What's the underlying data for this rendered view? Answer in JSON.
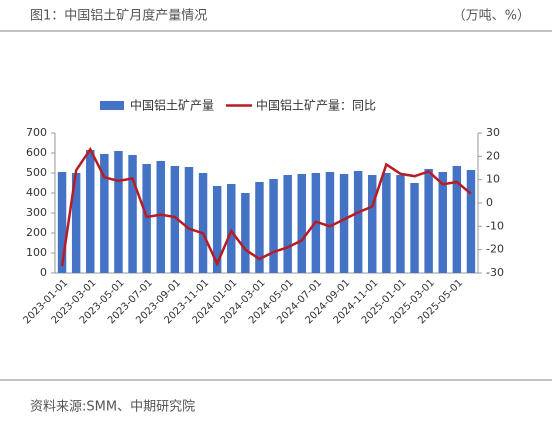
{
  "header": {
    "title": "图1：中国铝土矿月度产量情况",
    "unit": "（万吨、%）"
  },
  "source": "资料来源:SMM、中期研究院",
  "chart_data": {
    "type": "bar-line",
    "categories": [
      "2023-01-01",
      null,
      "2023-03-01",
      null,
      "2023-05-01",
      null,
      "2023-07-01",
      null,
      "2023-09-01",
      null,
      "2023-11-01",
      null,
      "2024-01-01",
      null,
      "2024-03-01",
      null,
      "2024-05-01",
      null,
      "2024-07-01",
      null,
      "2024-09-01",
      null,
      "2024-11-01",
      null,
      "2025-01-01",
      null,
      "2025-03-01",
      null,
      "2025-05-01",
      null
    ],
    "series": [
      {
        "name": "中国铝土矿产量",
        "color": "#4472c4",
        "type": "bar",
        "values": [
          505,
          500,
          615,
          595,
          610,
          590,
          545,
          560,
          535,
          530,
          500,
          435,
          445,
          400,
          455,
          470,
          490,
          495,
          500,
          505,
          495,
          510,
          490,
          500,
          490,
          450,
          520,
          505,
          535,
          515
        ]
      },
      {
        "name": "中国铝土矿产量：同比",
        "color": "#b81c22",
        "type": "line",
        "axis": "y2",
        "values": [
          -27,
          14,
          23,
          11,
          9.5,
          10.5,
          -6,
          -5,
          -6,
          -11,
          -13,
          -26,
          -12,
          -20,
          -24,
          -21,
          -19,
          -16,
          -8,
          -10,
          -7,
          -4,
          -1.5,
          16.5,
          12.5,
          11.5,
          13.5,
          8,
          9,
          4
        ]
      }
    ],
    "ylim": [
      0,
      700
    ],
    "yticks": [
      0,
      100,
      200,
      300,
      400,
      500,
      600,
      700
    ],
    "y2lim": [
      -30,
      30
    ],
    "y2ticks": [
      -30,
      -20,
      -10,
      0,
      10,
      20,
      30
    ],
    "legend": "top"
  }
}
